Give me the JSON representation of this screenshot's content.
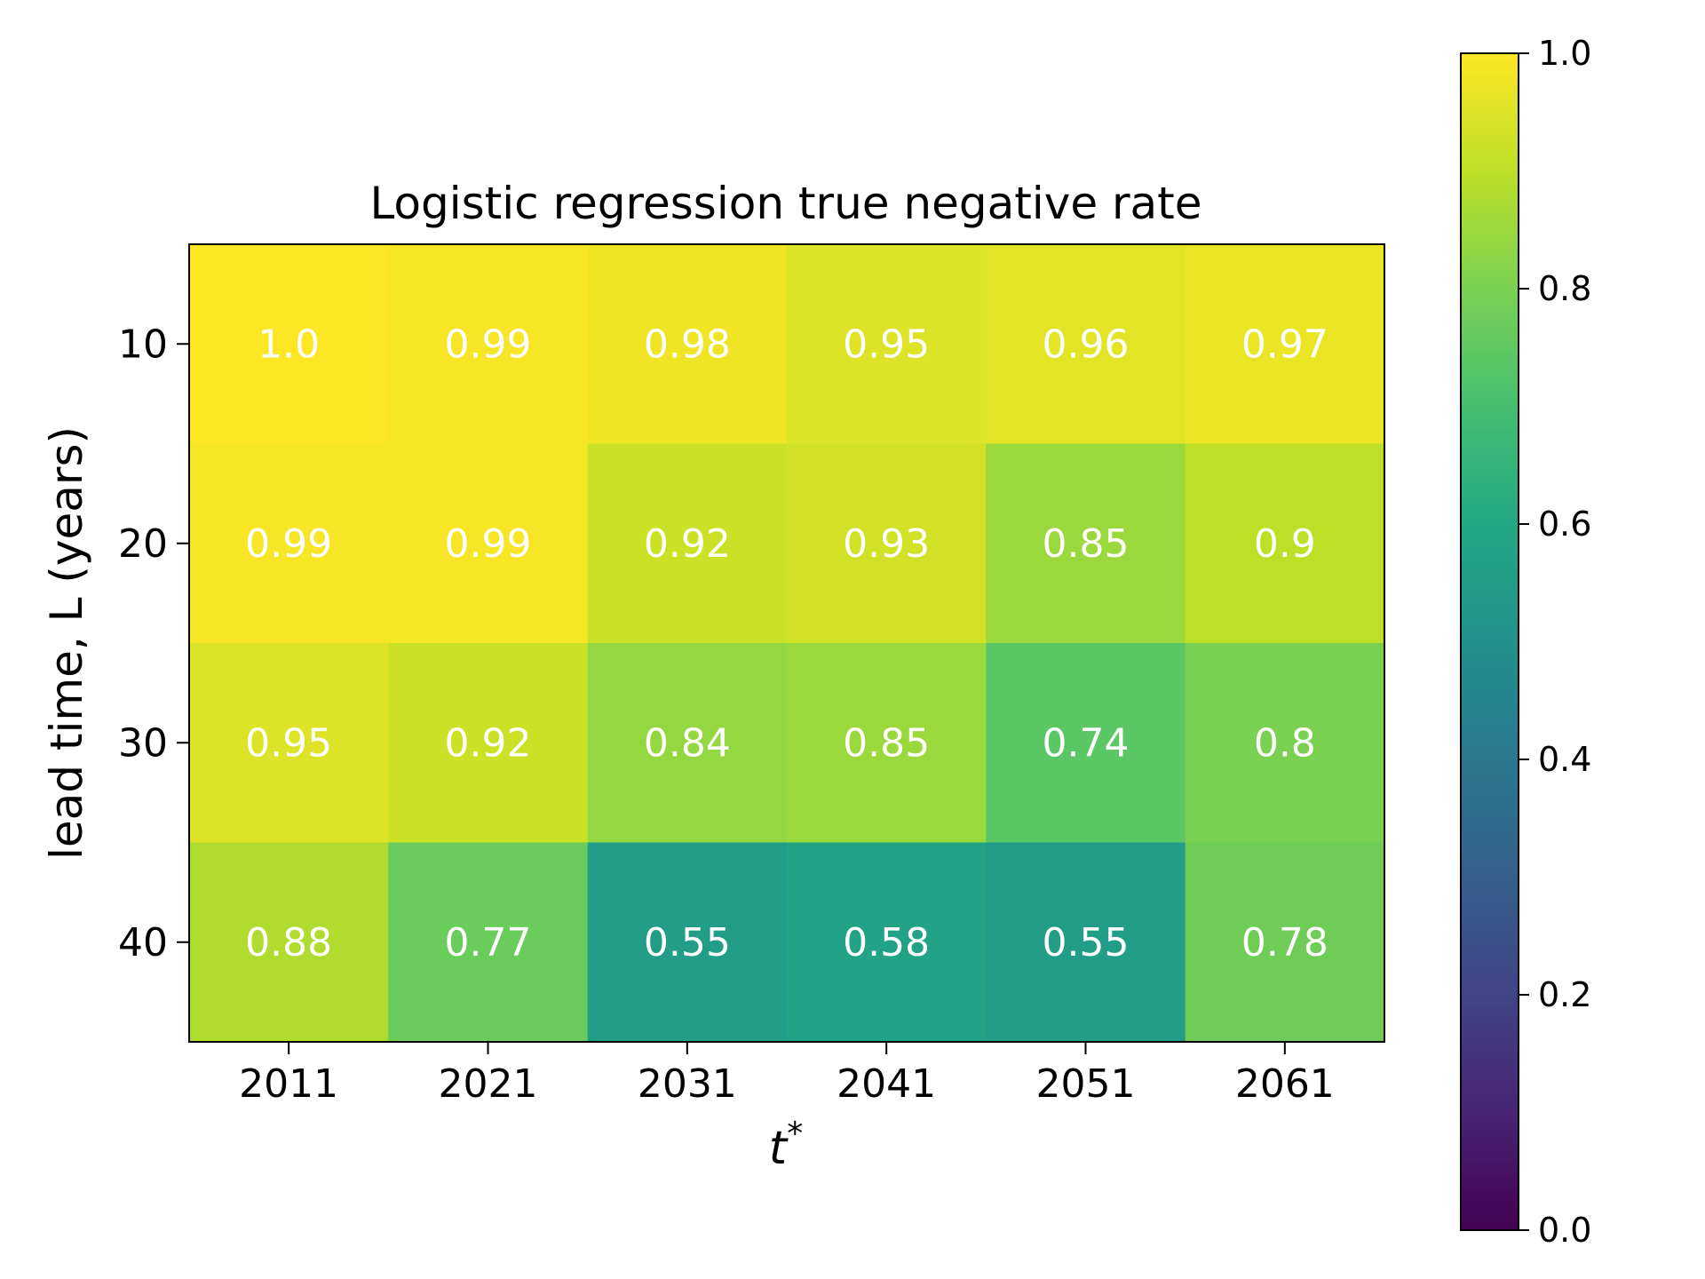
{
  "chart_data": {
    "type": "heatmap",
    "title": "Logistic regression true negative rate",
    "xlabel_base": "t",
    "xlabel_sup": "*",
    "ylabel": "lead time, L (years)",
    "x_categories": [
      "2011",
      "2021",
      "2031",
      "2041",
      "2051",
      "2061"
    ],
    "y_categories": [
      "10",
      "20",
      "30",
      "40"
    ],
    "values": [
      [
        1.0,
        0.99,
        0.98,
        0.95,
        0.96,
        0.97
      ],
      [
        0.99,
        0.99,
        0.92,
        0.93,
        0.85,
        0.9
      ],
      [
        0.95,
        0.92,
        0.84,
        0.85,
        0.74,
        0.8
      ],
      [
        0.88,
        0.77,
        0.55,
        0.58,
        0.55,
        0.78
      ]
    ],
    "cell_labels": [
      [
        "1.0",
        "0.99",
        "0.98",
        "0.95",
        "0.96",
        "0.97"
      ],
      [
        "0.99",
        "0.99",
        "0.92",
        "0.93",
        "0.85",
        "0.9"
      ],
      [
        "0.95",
        "0.92",
        "0.84",
        "0.85",
        "0.74",
        "0.8"
      ],
      [
        "0.88",
        "0.77",
        "0.55",
        "0.58",
        "0.55",
        "0.78"
      ]
    ],
    "colormap": "viridis",
    "vmin": 0.0,
    "vmax": 1.0,
    "colorbar_ticks": [
      "0.0",
      "0.2",
      "0.4",
      "0.6",
      "0.8",
      "1.0"
    ],
    "cell_label_color": "#ffffff"
  }
}
